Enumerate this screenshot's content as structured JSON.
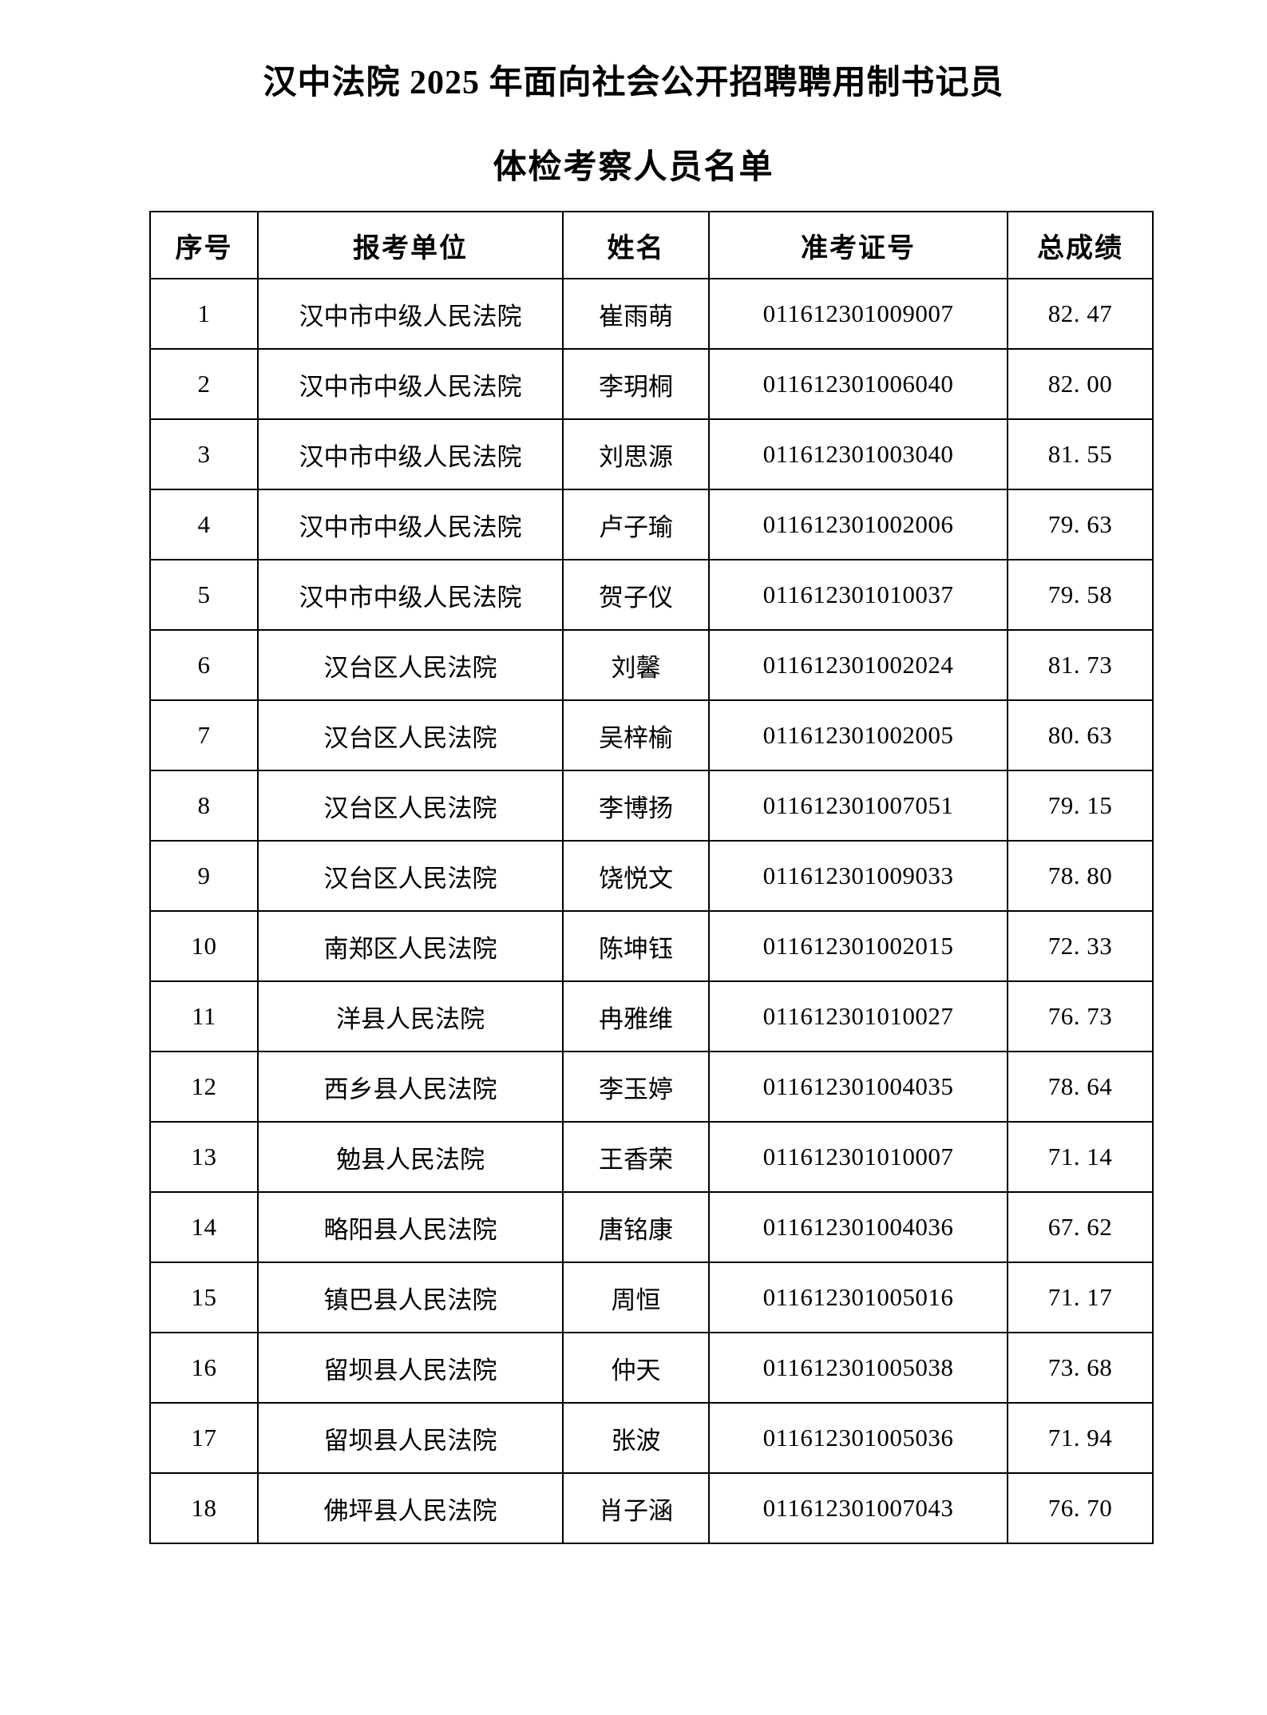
{
  "document": {
    "title_line1": "汉中法院 2025 年面向社会公开招聘聘用制书记员",
    "title_line2": "体检考察人员名单"
  },
  "table": {
    "headers": {
      "no": "序号",
      "unit": "报考单位",
      "name": "姓名",
      "ticket": "准考证号",
      "score": "总成绩"
    },
    "rows": [
      {
        "no": "1",
        "unit": "汉中市中级人民法院",
        "name": "崔雨萌",
        "ticket": "011612301009007",
        "score": "82. 47"
      },
      {
        "no": "2",
        "unit": "汉中市中级人民法院",
        "name": "李玥桐",
        "ticket": "011612301006040",
        "score": "82. 00"
      },
      {
        "no": "3",
        "unit": "汉中市中级人民法院",
        "name": "刘思源",
        "ticket": "011612301003040",
        "score": "81. 55"
      },
      {
        "no": "4",
        "unit": "汉中市中级人民法院",
        "name": "卢子瑜",
        "ticket": "011612301002006",
        "score": "79. 63"
      },
      {
        "no": "5",
        "unit": "汉中市中级人民法院",
        "name": "贺子仪",
        "ticket": "011612301010037",
        "score": "79. 58"
      },
      {
        "no": "6",
        "unit": "汉台区人民法院",
        "name": "刘馨",
        "ticket": "011612301002024",
        "score": "81. 73"
      },
      {
        "no": "7",
        "unit": "汉台区人民法院",
        "name": "吴梓榆",
        "ticket": "011612301002005",
        "score": "80. 63"
      },
      {
        "no": "8",
        "unit": "汉台区人民法院",
        "name": "李博扬",
        "ticket": "011612301007051",
        "score": "79. 15"
      },
      {
        "no": "9",
        "unit": "汉台区人民法院",
        "name": "饶悦文",
        "ticket": "011612301009033",
        "score": "78. 80"
      },
      {
        "no": "10",
        "unit": "南郑区人民法院",
        "name": "陈坤钰",
        "ticket": "011612301002015",
        "score": "72. 33"
      },
      {
        "no": "11",
        "unit": "洋县人民法院",
        "name": "冉雅维",
        "ticket": "011612301010027",
        "score": "76. 73"
      },
      {
        "no": "12",
        "unit": "西乡县人民法院",
        "name": "李玉婷",
        "ticket": "011612301004035",
        "score": "78. 64"
      },
      {
        "no": "13",
        "unit": "勉县人民法院",
        "name": "王香荣",
        "ticket": "011612301010007",
        "score": "71. 14"
      },
      {
        "no": "14",
        "unit": "略阳县人民法院",
        "name": "唐铭康",
        "ticket": "011612301004036",
        "score": "67. 62"
      },
      {
        "no": "15",
        "unit": "镇巴县人民法院",
        "name": "周恒",
        "ticket": "011612301005016",
        "score": "71. 17"
      },
      {
        "no": "16",
        "unit": "留坝县人民法院",
        "name": "仲天",
        "ticket": "011612301005038",
        "score": "73. 68"
      },
      {
        "no": "17",
        "unit": "留坝县人民法院",
        "name": "张波",
        "ticket": "011612301005036",
        "score": "71. 94"
      },
      {
        "no": "18",
        "unit": "佛坪县人民法院",
        "name": "肖子涵",
        "ticket": "011612301007043",
        "score": "76. 70"
      }
    ]
  }
}
